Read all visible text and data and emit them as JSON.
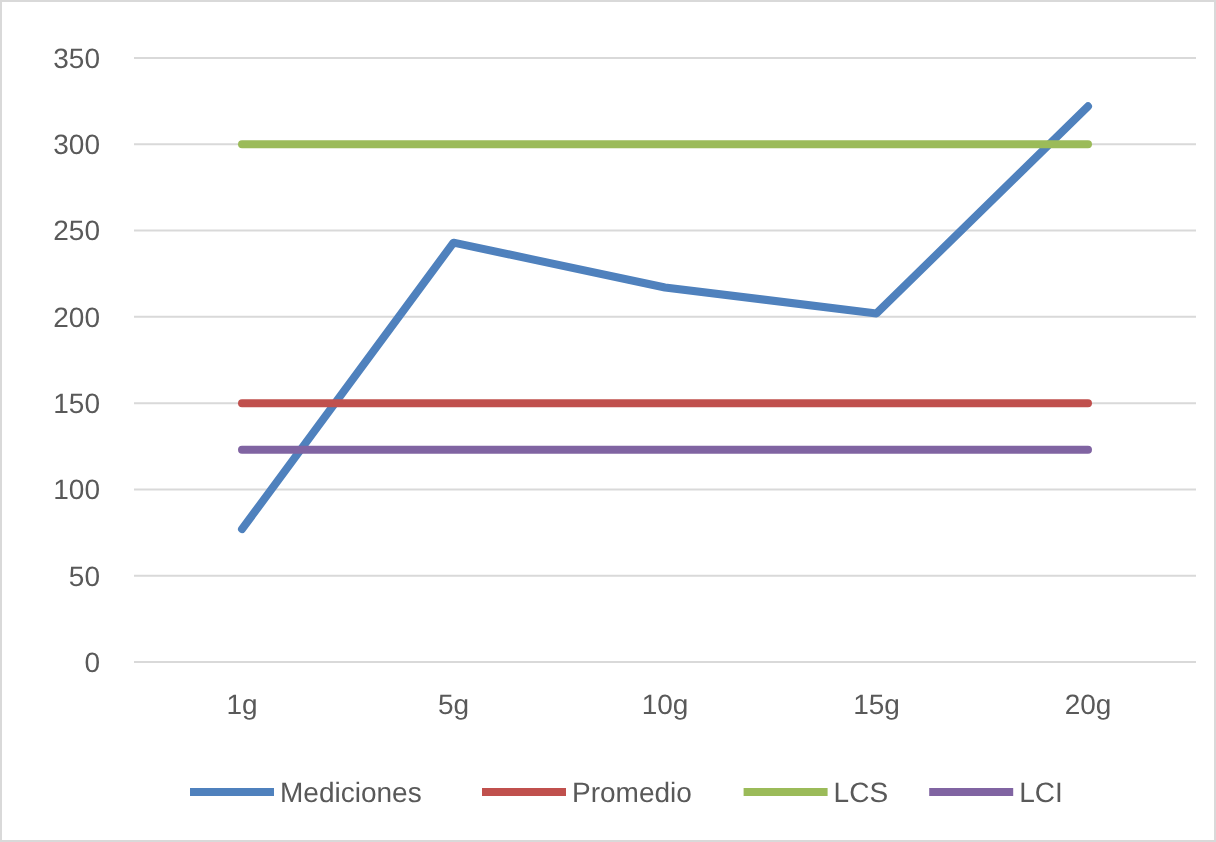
{
  "chart_data": {
    "type": "line",
    "categories": [
      "1g",
      "5g",
      "10g",
      "15g",
      "20g"
    ],
    "series": [
      {
        "name": "Mediciones",
        "color": "#4f81bd",
        "values": [
          77,
          243,
          217,
          202,
          322
        ]
      },
      {
        "name": "Promedio",
        "color": "#c0504d",
        "values": [
          150,
          150,
          150,
          150,
          150
        ]
      },
      {
        "name": "LCS",
        "color": "#9bbb59",
        "values": [
          300,
          300,
          300,
          300,
          300
        ]
      },
      {
        "name": "LCI",
        "color": "#8064a2",
        "values": [
          123,
          123,
          123,
          123,
          123
        ]
      }
    ],
    "ylim": [
      0,
      350
    ],
    "yticks": [
      0,
      50,
      100,
      150,
      200,
      250,
      300,
      350
    ],
    "grid": "y",
    "legend": "bottom",
    "marker": "none",
    "line_style": "solid"
  }
}
